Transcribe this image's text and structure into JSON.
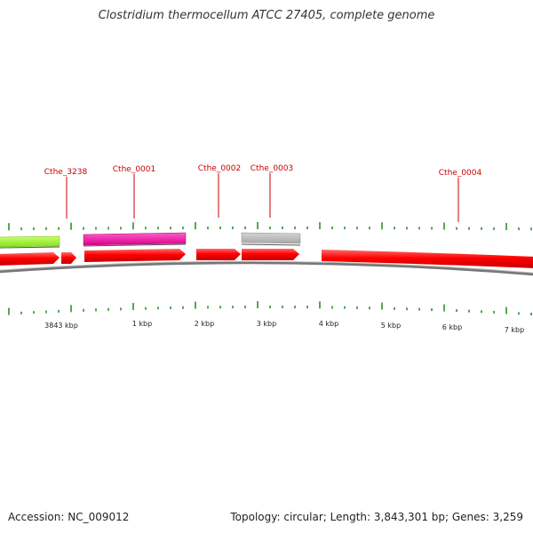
{
  "title": "Clostridium thermocellum ATCC 27405, complete genome",
  "accession": "Accession: NC_009012",
  "summary": "Topology: circular; Length: 3,843,301 bp; Genes: 3,259",
  "colors": {
    "gene_label": "#cc0000",
    "cds_strand": "#ff0000",
    "tick": "#1a8a1a",
    "backbone": "#808080",
    "feature_green": "#99ff33",
    "feature_magenta": "#ff2ab0",
    "feature_gray": "#b8b8b8"
  },
  "scale_labels": [
    "3843 kbp",
    "1 kbp",
    "2 kbp",
    "3 kbp",
    "4 kbp",
    "5 kbp",
    "6 kbp",
    "7 kbp"
  ],
  "gene_labels": [
    "Cthe_3238",
    "Cthe_0001",
    "Cthe_0002",
    "Cthe_0003",
    "Cthe_0004"
  ]
}
